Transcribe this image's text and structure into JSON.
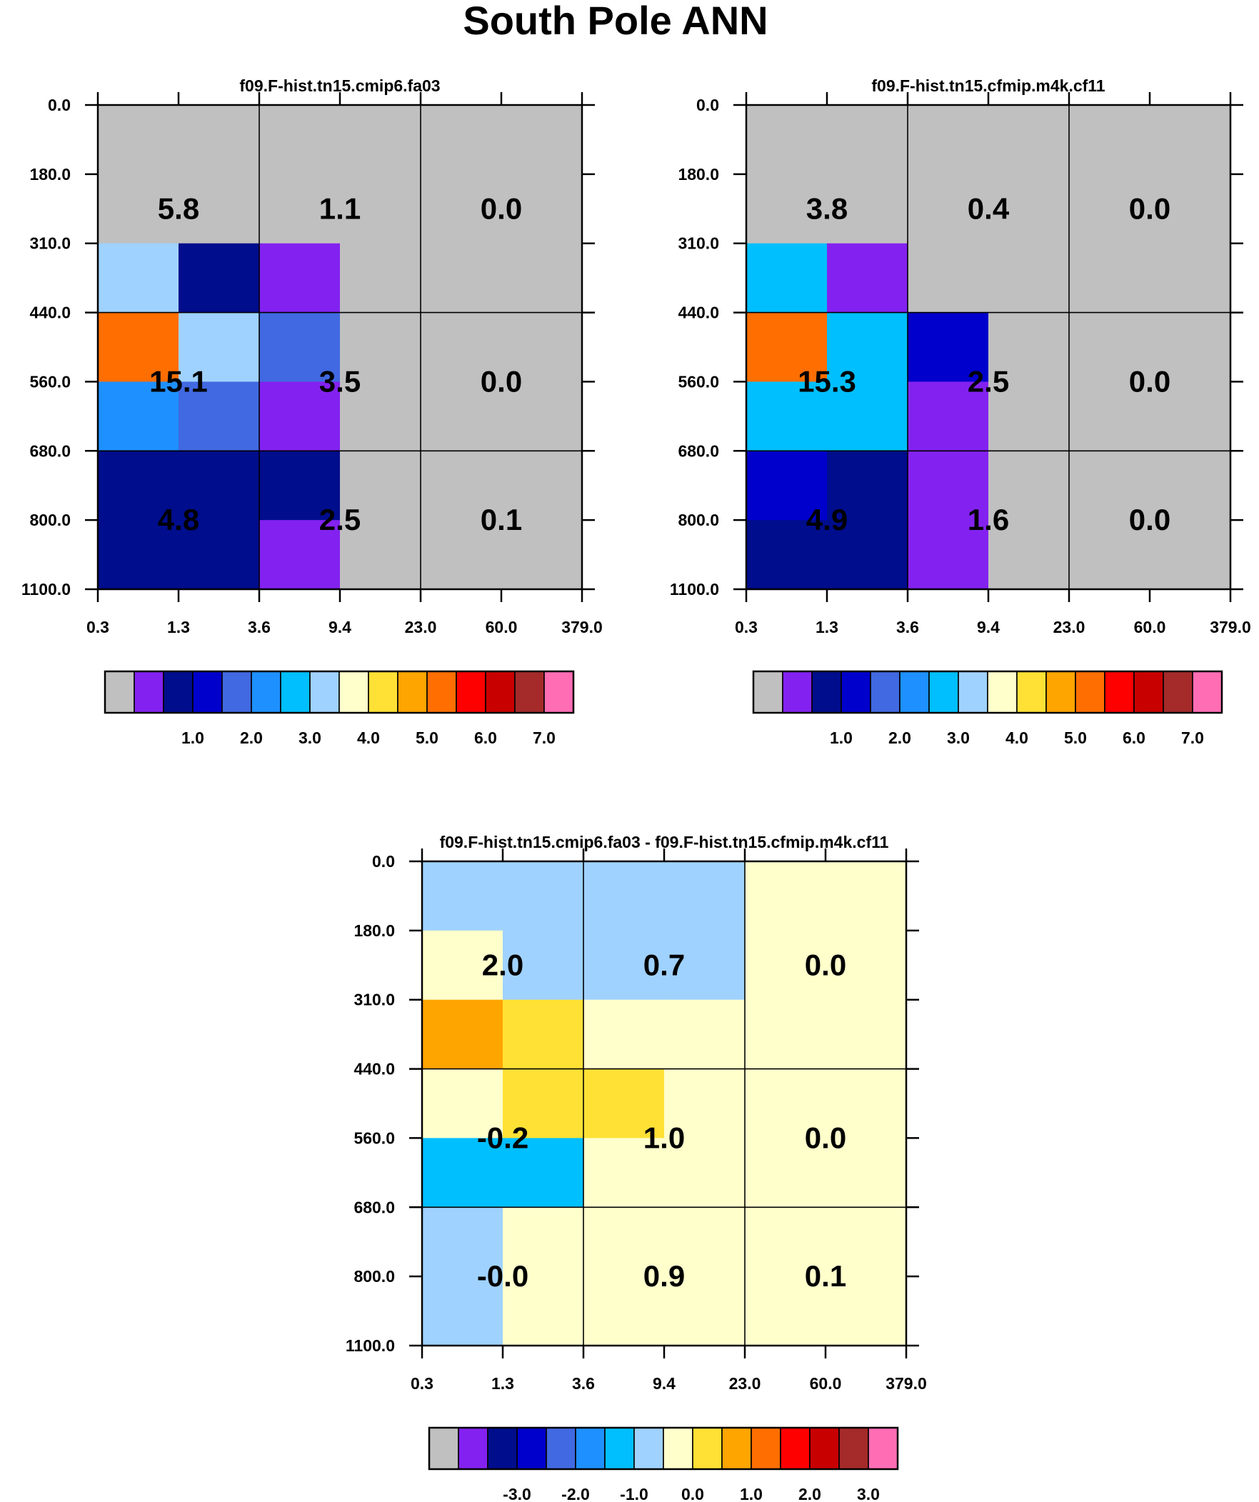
{
  "title": "South Pole ANN",
  "chart_data": [
    {
      "type": "heatmap",
      "panel": "control",
      "title": "f09.F-hist.tn15.cmip6.fa03",
      "x_ticks": [
        "0.3",
        "1.3",
        "3.6",
        "9.4",
        "23.0",
        "60.0",
        "379.0"
      ],
      "y_ticks": [
        "0.0",
        "180.0",
        "310.0",
        "440.0",
        "560.0",
        "680.0",
        "800.0",
        "1100.0"
      ],
      "cells": [
        [
          0,
          0,
          0,
          0,
          0,
          0
        ],
        [
          0,
          0,
          0,
          0,
          0,
          0
        ],
        [
          7,
          2,
          1,
          0,
          0,
          0
        ],
        [
          11,
          7,
          4,
          0,
          0,
          0
        ],
        [
          5,
          4,
          1,
          0,
          0,
          0
        ],
        [
          2,
          2,
          2,
          0,
          0,
          0
        ],
        [
          2,
          2,
          1,
          0,
          0,
          0
        ]
      ],
      "block_labels": [
        [
          "5.8",
          "1.1",
          "0.0"
        ],
        [
          "15.1",
          "3.5",
          "0.0"
        ],
        [
          "4.8",
          "2.5",
          "0.1"
        ]
      ],
      "colorbar_labels": [
        "1.0",
        "2.0",
        "3.0",
        "4.0",
        "5.0",
        "6.0",
        "7.0"
      ]
    },
    {
      "type": "heatmap",
      "panel": "test",
      "title": "f09.F-hist.tn15.cfmip.m4k.cf11",
      "x_ticks": [
        "0.3",
        "1.3",
        "3.6",
        "9.4",
        "23.0",
        "60.0",
        "379.0"
      ],
      "y_ticks": [
        "0.0",
        "180.0",
        "310.0",
        "440.0",
        "560.0",
        "680.0",
        "800.0",
        "1100.0"
      ],
      "cells": [
        [
          0,
          0,
          0,
          0,
          0,
          0
        ],
        [
          0,
          0,
          0,
          0,
          0,
          0
        ],
        [
          6,
          1,
          0,
          0,
          0,
          0
        ],
        [
          11,
          6,
          3,
          0,
          0,
          0
        ],
        [
          6,
          6,
          1,
          0,
          0,
          0
        ],
        [
          3,
          2,
          1,
          0,
          0,
          0
        ],
        [
          2,
          2,
          1,
          0,
          0,
          0
        ]
      ],
      "block_labels": [
        [
          "3.8",
          "0.4",
          "0.0"
        ],
        [
          "15.3",
          "2.5",
          "0.0"
        ],
        [
          "4.9",
          "1.6",
          "0.0"
        ]
      ],
      "colorbar_labels": [
        "1.0",
        "2.0",
        "3.0",
        "4.0",
        "5.0",
        "6.0",
        "7.0"
      ]
    },
    {
      "type": "heatmap",
      "panel": "difference",
      "title": "f09.F-hist.tn15.cmip6.fa03 - f09.F-hist.tn15.cfmip.m4k.cf11",
      "x_ticks": [
        "0.3",
        "1.3",
        "3.6",
        "9.4",
        "23.0",
        "60.0",
        "379.0"
      ],
      "y_ticks": [
        "0.0",
        "180.0",
        "310.0",
        "440.0",
        "560.0",
        "680.0",
        "800.0",
        "1100.0"
      ],
      "cells": [
        [
          7,
          7,
          7,
          7,
          8,
          8
        ],
        [
          8,
          7,
          7,
          7,
          8,
          8
        ],
        [
          10,
          9,
          8,
          8,
          8,
          8
        ],
        [
          8,
          9,
          9,
          8,
          8,
          8
        ],
        [
          6,
          6,
          8,
          8,
          8,
          8
        ],
        [
          7,
          8,
          8,
          8,
          8,
          8
        ],
        [
          7,
          8,
          8,
          8,
          8,
          8
        ]
      ],
      "block_labels": [
        [
          "2.0",
          "0.7",
          "0.0"
        ],
        [
          "-0.2",
          "1.0",
          "0.0"
        ],
        [
          "-0.0",
          "0.9",
          "0.1"
        ]
      ],
      "colorbar_labels": [
        "-3.0",
        "-2.0",
        "-1.0",
        "0.0",
        "1.0",
        "2.0",
        "3.0"
      ]
    }
  ],
  "palette": [
    "#c0c0c0",
    "#8322f0",
    "#000d8c",
    "#0000cc",
    "#4169e1",
    "#1e90ff",
    "#00bfff",
    "#a0d2ff",
    "#ffffcc",
    "#ffe135",
    "#ffa500",
    "#ff6e00",
    "#ff0000",
    "#c90000",
    "#a52a2a",
    "#ff6eb4"
  ]
}
